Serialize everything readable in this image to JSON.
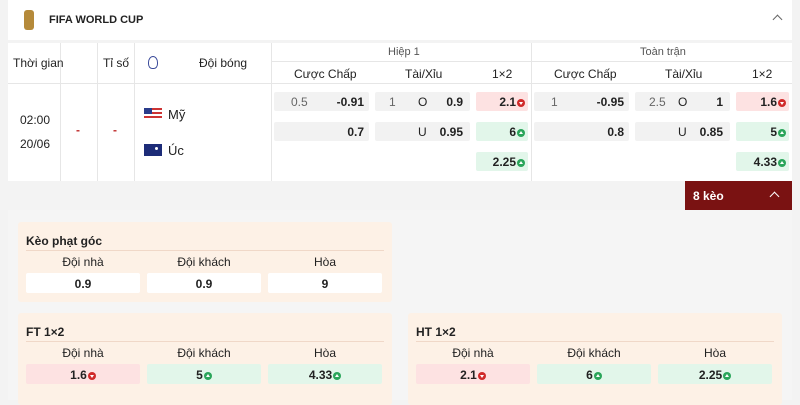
{
  "header": {
    "title": "FIFA WORLD CUP"
  },
  "table": {
    "columns": {
      "time": "Thời gian",
      "score": "Tỉ số",
      "team": "Đội bóng"
    },
    "groups": [
      "Hiệp 1",
      "Toàn trận"
    ],
    "subcolumns": [
      [
        "Cược Chấp",
        "Tài/Xỉu",
        "1×2"
      ],
      [
        "Cược Chấp",
        "Tài/Xỉu",
        "1×2"
      ]
    ],
    "match": {
      "time": "02:00",
      "date": "20/06",
      "score": [
        "-",
        "-"
      ],
      "teams": [
        "Mỹ",
        "Úc"
      ],
      "odds": [
        {
          "handicap": {
            "line": "0.5",
            "home": "-0.91",
            "away": "0.7"
          },
          "total": {
            "line": "1",
            "over_label": "O",
            "over": "0.9",
            "under_label": "U",
            "under": "0.95"
          },
          "x12": [
            "2.1",
            "6",
            "2.25"
          ]
        },
        {
          "handicap": {
            "line": "1",
            "home": "-0.95",
            "away": "0.8"
          },
          "total": {
            "line": "2.5",
            "over_label": "O",
            "over": "1",
            "under_label": "U",
            "under": "0.85"
          },
          "x12": [
            "1.6",
            "5",
            "4.33"
          ]
        }
      ]
    }
  },
  "more_button": "8 kèo",
  "panels": [
    {
      "title": "Kèo phạt góc",
      "labels": [
        "Đội nhà",
        "Đội khách",
        "Hòa"
      ],
      "values": [
        "0.9",
        "0.9",
        "9"
      ]
    },
    {
      "title": "FT 1×2",
      "labels": [
        "Đội nhà",
        "Đội khách",
        "Hòa"
      ],
      "values": [
        "1.6",
        "5",
        "4.33"
      ]
    },
    {
      "title": "HT 1×2",
      "labels": [
        "Đội nhà",
        "Đội khách",
        "Hòa"
      ],
      "values": [
        "2.1",
        "6",
        "2.25"
      ]
    }
  ]
}
